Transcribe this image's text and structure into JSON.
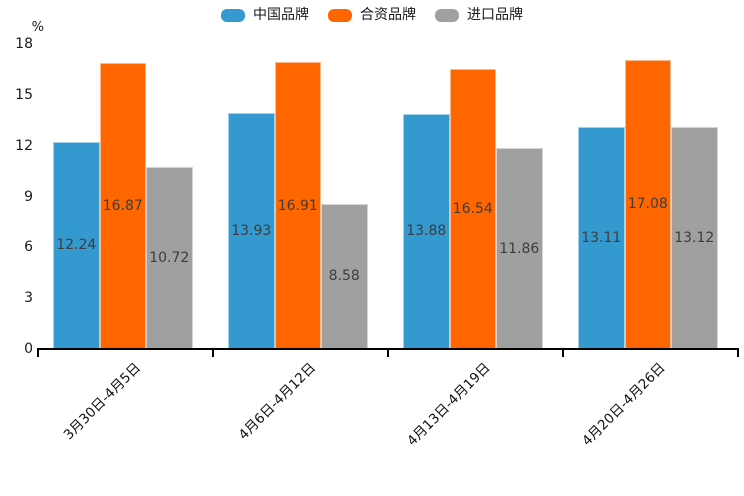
{
  "chart_data": {
    "type": "bar",
    "title": "",
    "xlabel": "",
    "ylabel": "%",
    "ylim": [
      0,
      18
    ],
    "yticks": [
      0,
      3,
      6,
      9,
      12,
      15,
      18
    ],
    "grid": false,
    "legend_position": "top",
    "value_labels": "inside-center",
    "categories": [
      "3月30日-4月5日",
      "4月6日-4月12日",
      "4月13日-4月19日",
      "4月20日-4月26日"
    ],
    "series": [
      {
        "name": "中国品牌",
        "color": "#3499CE",
        "values": [
          12.24,
          13.93,
          13.88,
          13.11
        ]
      },
      {
        "name": "合资品牌",
        "color": "#FF6600",
        "values": [
          16.87,
          16.91,
          16.54,
          17.08
        ]
      },
      {
        "name": "进口品牌",
        "color": "#A0A0A0",
        "values": [
          10.72,
          8.58,
          11.86,
          13.12
        ]
      }
    ],
    "axis_color": "#000000",
    "tick_label_color": "#1a1a1a",
    "bar_label_color": "#3d3d3d"
  }
}
